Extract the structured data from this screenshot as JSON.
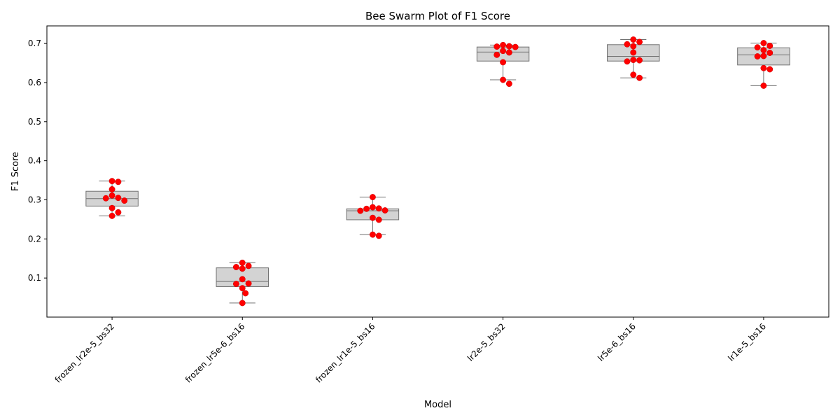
{
  "chart_data": {
    "type": "box",
    "title": "Bee Swarm Plot of F1 Score",
    "xlabel": "Model",
    "ylabel": "F1 Score",
    "ylim": [
      0.0,
      0.745
    ],
    "yticks": [
      "0.1",
      "0.2",
      "0.3",
      "0.4",
      "0.5",
      "0.6",
      "0.7"
    ],
    "grid": false,
    "legend": "none",
    "box_color": "#d3d3d3",
    "box_edge_color": "#707070",
    "point_color": "#ff0000",
    "categories": [
      "frozen_lr2e-5_bs32",
      "frozen_lr5e-6_bs16",
      "frozen_lr1e-5_bs16",
      "lr2e-5_bs32",
      "lr5e-6_bs16",
      "lr1e-5_bs16"
    ],
    "boxes": [
      {
        "q1": 0.284,
        "median": 0.303,
        "q3": 0.322,
        "whisker_low": 0.259,
        "whisker_high": 0.348
      },
      {
        "q1": 0.078,
        "median": 0.091,
        "q3": 0.126,
        "whisker_low": 0.036,
        "whisker_high": 0.139
      },
      {
        "q1": 0.249,
        "median": 0.272,
        "q3": 0.277,
        "whisker_low": 0.211,
        "whisker_high": 0.307
      },
      {
        "q1": 0.655,
        "median": 0.678,
        "q3": 0.691,
        "whisker_low": 0.607,
        "whisker_high": 0.696
      },
      {
        "q1": 0.655,
        "median": 0.667,
        "q3": 0.697,
        "whisker_low": 0.612,
        "whisker_high": 0.71
      },
      {
        "q1": 0.645,
        "median": 0.671,
        "q3": 0.689,
        "whisker_low": 0.592,
        "whisker_high": 0.701
      }
    ],
    "points": [
      [
        0.348,
        0.346,
        0.327,
        0.311,
        0.305,
        0.304,
        0.298,
        0.279,
        0.268,
        0.259
      ],
      [
        0.139,
        0.131,
        0.128,
        0.124,
        0.097,
        0.086,
        0.085,
        0.074,
        0.061,
        0.036
      ],
      [
        0.307,
        0.281,
        0.278,
        0.277,
        0.273,
        0.272,
        0.254,
        0.249,
        0.211,
        0.208
      ],
      [
        0.696,
        0.693,
        0.692,
        0.691,
        0.681,
        0.677,
        0.671,
        0.652,
        0.607,
        0.597
      ],
      [
        0.71,
        0.704,
        0.698,
        0.693,
        0.677,
        0.658,
        0.657,
        0.654,
        0.62,
        0.612
      ],
      [
        0.701,
        0.694,
        0.69,
        0.683,
        0.676,
        0.668,
        0.667,
        0.637,
        0.634,
        0.592
      ]
    ]
  }
}
